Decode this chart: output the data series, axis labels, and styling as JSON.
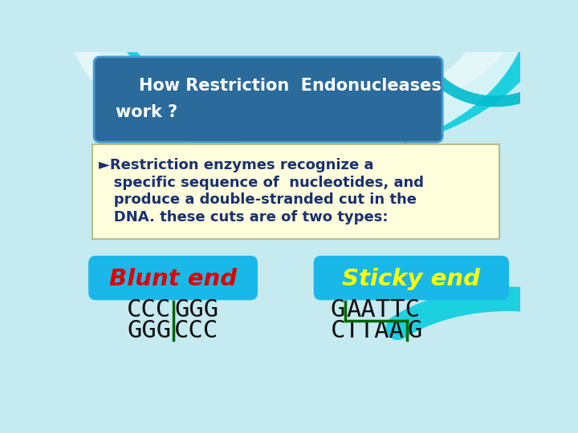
{
  "bg_color": "#c5eaf0",
  "title_box_color": "#2a6b9c",
  "title_text_line1": "    How Restriction  Endonucleases",
  "title_text_line2": "work ?",
  "title_text_color": "#ffffff",
  "bullet_box_color": "#ffffdd",
  "bullet_border_color": "#bbbb88",
  "bullet_line1": "►Restriction enzymes recognize a",
  "bullet_line2": "   specific sequence of  nucleotides, and",
  "bullet_line3": "   produce a double-stranded cut in the",
  "bullet_line4": "   DNA. these cuts are of two types:",
  "bullet_text_color": "#1a3070",
  "blunt_btn_color": "#1ab8e8",
  "blunt_btn_text": "Blunt end",
  "blunt_btn_text_color": "#dd0000",
  "sticky_btn_color": "#1ab8e8",
  "sticky_btn_text": "Sticky end",
  "sticky_btn_text_color": "#ffff00",
  "seq_color": "#111111",
  "cut_color": "#006600",
  "wave_color1": "#00ccdd",
  "wave_color2": "#00aabb"
}
